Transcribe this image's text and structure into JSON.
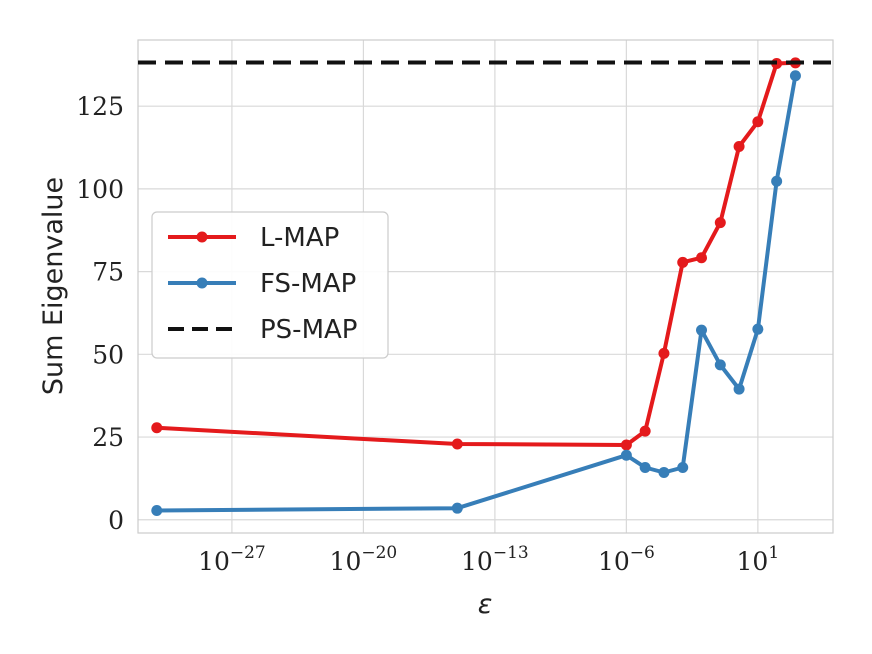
{
  "chart_data": {
    "type": "line",
    "xscale": "log",
    "xlabel": "ε",
    "ylabel": "Sum Eigenvalue",
    "xlim": [
      1e-32,
      100000.0
    ],
    "ylim": [
      -4,
      145
    ],
    "grid": true,
    "legend_position": "center-left",
    "x_ticks": [
      {
        "value": 1e-27,
        "base": "10",
        "exp": "−27"
      },
      {
        "value": 1e-20,
        "base": "10",
        "exp": "−20"
      },
      {
        "value": 1e-13,
        "base": "10",
        "exp": "−13"
      },
      {
        "value": 1e-06,
        "base": "10",
        "exp": "−6"
      },
      {
        "value": 10,
        "base": "10",
        "exp": "1"
      }
    ],
    "y_ticks": [
      {
        "value": 0,
        "label": "0"
      },
      {
        "value": 25,
        "label": "25"
      },
      {
        "value": 50,
        "label": "50"
      },
      {
        "value": 75,
        "label": "75"
      },
      {
        "value": 100,
        "label": "100"
      },
      {
        "value": 125,
        "label": "125"
      }
    ],
    "series": [
      {
        "name": "L-MAP",
        "color": "#e41a1c",
        "style": "solid",
        "markers": true,
        "x": [
          1e-31,
          1e-15,
          1e-06,
          1e-05,
          0.0001,
          0.001,
          0.01,
          0.1,
          1,
          10,
          100,
          1000
        ],
        "y": [
          27.8,
          22.9,
          22.6,
          26.8,
          50.3,
          77.8,
          79.2,
          89.8,
          112.8,
          120.3,
          137.9,
          138.1
        ]
      },
      {
        "name": "FS-MAP",
        "color": "#377eb8",
        "style": "solid",
        "markers": true,
        "x": [
          1e-31,
          1e-15,
          1e-06,
          1e-05,
          0.0001,
          0.001,
          0.01,
          0.1,
          1,
          10,
          100,
          1000
        ],
        "y": [
          2.8,
          3.5,
          19.5,
          15.8,
          14.3,
          15.8,
          57.3,
          46.8,
          39.5,
          57.6,
          102.3,
          134.2
        ]
      },
      {
        "name": "PS-MAP",
        "color": "#111111",
        "style": "dashed",
        "markers": false,
        "constant": 138.2
      }
    ]
  }
}
